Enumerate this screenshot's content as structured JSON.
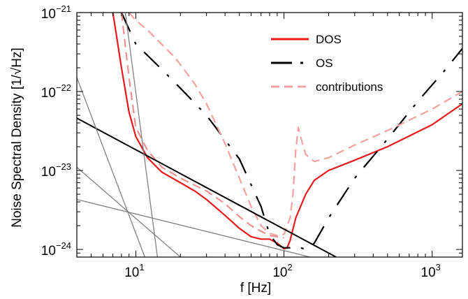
{
  "chart_data": {
    "type": "line",
    "xscale": "log",
    "yscale": "log",
    "xlim": [
      4,
      1600
    ],
    "ylim": [
      8e-25,
      1e-21
    ],
    "xlabel": "f [Hz]",
    "ylabel": "Noise Spectral Density [1/√Hz]",
    "grid": false,
    "legend_position": "top-right",
    "x_ticks": [
      {
        "value": 10,
        "label": "10",
        "exp": "1"
      },
      {
        "value": 100,
        "label": "10",
        "exp": "2"
      },
      {
        "value": 1000,
        "label": "10",
        "exp": "3"
      }
    ],
    "y_ticks": [
      {
        "value": 1e-24,
        "label": "10",
        "exp": "−24"
      },
      {
        "value": 1e-23,
        "label": "10",
        "exp": "−23"
      },
      {
        "value": 1e-22,
        "label": "10",
        "exp": "−22"
      },
      {
        "value": 1e-21,
        "label": "10",
        "exp": "−21"
      }
    ],
    "series": [
      {
        "name": "DOS",
        "color": "#e8191c",
        "style": "solid",
        "x": [
          7,
          8,
          9,
          10,
          12,
          15,
          20,
          25,
          30,
          40,
          50,
          60,
          70,
          80,
          90,
          100,
          105,
          110,
          120,
          140,
          160,
          200,
          300,
          500,
          1000,
          1600
        ],
        "y": [
          1e-21,
          2e-22,
          5.5e-23,
          2.7e-23,
          1.45e-23,
          9.5e-24,
          7e-24,
          5.5e-24,
          4.3e-24,
          2.7e-24,
          1.85e-24,
          1.45e-24,
          1.35e-24,
          1.35e-24,
          1.2e-24,
          1.02e-24,
          1.05e-24,
          1.3e-24,
          2.5e-24,
          5e-24,
          7.5e-24,
          1e-23,
          1.35e-23,
          2e-23,
          3.8e-23,
          7e-23
        ]
      },
      {
        "name": "OS",
        "color": "#000000",
        "style": "dashdot",
        "x": [
          8,
          10,
          15,
          20,
          30,
          50,
          70,
          80,
          90,
          100,
          110,
          120,
          140,
          160,
          200,
          300,
          500,
          800,
          1200,
          1600
        ],
        "y": [
          1e-21,
          4e-22,
          1.9e-22,
          1.1e-22,
          5e-23,
          1.4e-23,
          3.5e-24,
          1.55e-24,
          1.15e-24,
          1.05e-24,
          1.05e-24,
          1.1e-24,
          1e-24,
          1.2e-24,
          2.5e-24,
          8e-24,
          2.5e-23,
          7.5e-23,
          1.8e-22,
          3.5e-22
        ]
      },
      {
        "name": "contributions",
        "color": "#f4a0a0",
        "style": "dashed",
        "x": [
          9,
          10,
          12,
          14,
          16,
          18,
          20,
          25,
          30,
          40,
          50,
          60,
          70,
          80,
          90,
          100,
          110,
          115,
          120,
          125,
          130,
          140,
          160,
          200,
          300,
          500,
          1000,
          1600
        ],
        "y": [
          1e-21,
          8e-22,
          6e-22,
          4.5e-22,
          3.5e-22,
          2.8e-22,
          2.2e-22,
          1.25e-22,
          7e-23,
          2.2e-23,
          8e-24,
          3.5e-24,
          2e-24,
          1.6e-24,
          1.5e-24,
          1.55e-24,
          2.5e-24,
          5e-24,
          1.8e-23,
          3.5e-23,
          2.6e-23,
          1.6e-23,
          1.3e-23,
          1.45e-23,
          2.1e-23,
          3.2e-23,
          6e-23,
          1e-22
        ]
      },
      {
        "color": "#ee9090",
        "style": "dashed",
        "x": [
          8,
          9,
          10,
          12,
          15,
          20,
          30,
          40,
          50,
          60,
          70,
          80,
          100
        ],
        "y": [
          1e-21,
          1.5e-22,
          3.5e-23,
          1.8e-23,
          1.1e-23,
          8e-24,
          5.5e-24,
          3.8e-24,
          2.6e-24,
          2e-24,
          1.7e-24,
          1.5e-24,
          1.4e-24
        ]
      },
      {
        "color": "#000000",
        "style": "solid",
        "x": [
          4,
          225
        ],
        "y": [
          4.6e-23,
          8e-25
        ]
      },
      {
        "color": "#808080",
        "style": "solid",
        "x": [
          4,
          11.5
        ],
        "y": [
          1.5e-22,
          8e-25
        ]
      },
      {
        "color": "#808080",
        "style": "solid",
        "x": [
          8.5,
          14
        ],
        "y": [
          1e-21,
          8e-25
        ]
      },
      {
        "color": "#808080",
        "style": "solid",
        "x": [
          4,
          20
        ],
        "y": [
          1.1e-23,
          8e-25
        ]
      },
      {
        "color": "#808080",
        "style": "solid",
        "x": [
          4,
          150
        ],
        "y": [
          4.3e-24,
          8e-25
        ]
      }
    ]
  }
}
